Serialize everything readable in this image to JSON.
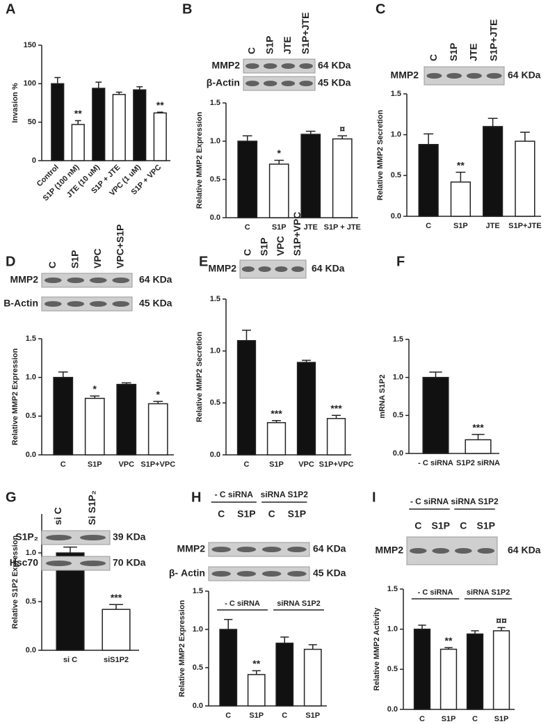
{
  "chart_data": [
    {
      "type": "bar",
      "panel": "A",
      "ylabel": "Invasion %",
      "categories": [
        "Control",
        "S1P (100 nM)",
        "JTE (10 uM)",
        "S1P + JTE",
        "VPC (1 uM)",
        "S1P + VPC"
      ],
      "values": [
        100,
        47,
        94,
        86,
        92,
        62
      ],
      "errors": [
        8,
        5,
        8,
        3,
        4,
        1
      ],
      "colors": [
        "#111111",
        "#ffffff",
        "#111111",
        "#ffffff",
        "#111111",
        "#ffffff"
      ],
      "annotations": [
        null,
        "**",
        null,
        null,
        null,
        "**"
      ],
      "ylim": [
        0,
        150
      ],
      "yticks": [
        0,
        50,
        100,
        150
      ]
    },
    {
      "type": "bar",
      "panel": "B",
      "ylabel": "Relative MMP2 Expression",
      "categories": [
        "C",
        "S1P",
        "JTE",
        "S1P + JTE"
      ],
      "values": [
        1.0,
        0.7,
        1.09,
        1.03
      ],
      "errors": [
        0.07,
        0.05,
        0.04,
        0.04
      ],
      "colors": [
        "#111111",
        "#ffffff",
        "#111111",
        "#ffffff"
      ],
      "annotations": [
        null,
        "*",
        null,
        "¤"
      ],
      "ylim": [
        0,
        1.5
      ],
      "yticks": [
        {
          "value": 0,
          "label": "0.0"
        },
        0.5,
        {
          "value": 1,
          "label": "1.0"
        },
        1.5
      ],
      "blot": {
        "lanes": [
          "C",
          "S1P",
          "JTE",
          "S1P+JTE"
        ],
        "rows": [
          {
            "label": "MMP2",
            "size": "64 KDa"
          },
          {
            "label": "β-Actin",
            "size": "45 KDa"
          }
        ]
      }
    },
    {
      "type": "bar",
      "panel": "C",
      "ylabel": "Relative MMP2 Secretion",
      "categories": [
        "C",
        "S1P",
        "JTE",
        "S1P+JTE"
      ],
      "values": [
        0.88,
        0.42,
        1.1,
        0.92
      ],
      "errors": [
        0.13,
        0.12,
        0.1,
        0.11
      ],
      "colors": [
        "#111111",
        "#ffffff",
        "#111111",
        "#ffffff"
      ],
      "annotations": [
        null,
        "**",
        null,
        null
      ],
      "ylim": [
        0,
        1.5
      ],
      "yticks": [
        {
          "value": 0,
          "label": "0.0"
        },
        0.5,
        {
          "value": 1,
          "label": "1.0"
        },
        1.5
      ],
      "blot": {
        "lanes": [
          "C",
          "S1P",
          "JTE",
          "S1P+JTE"
        ],
        "rows": [
          {
            "label": "MMP2",
            "size": "64 KDa"
          }
        ]
      }
    },
    {
      "type": "bar",
      "panel": "D",
      "ylabel": "Relative MMP2 Expression",
      "categories": [
        "C",
        "S1P",
        "VPC",
        "S1P+VPC"
      ],
      "values": [
        1.0,
        0.73,
        0.91,
        0.66
      ],
      "errors": [
        0.07,
        0.03,
        0.02,
        0.03
      ],
      "colors": [
        "#111111",
        "#ffffff",
        "#111111",
        "#ffffff"
      ],
      "annotations": [
        null,
        "*",
        null,
        "*"
      ],
      "ylim": [
        0,
        1.5
      ],
      "yticks": [
        {
          "value": 0,
          "label": "0.0"
        },
        0.5,
        {
          "value": 1,
          "label": "1.0"
        },
        1.5
      ],
      "blot": {
        "lanes": [
          "C",
          "S1P",
          "VPC",
          "VPC+S1P"
        ],
        "rows": [
          {
            "label": "MMP2",
            "size": "64 KDa"
          },
          {
            "label": "B-Actin",
            "size": "45 KDa"
          }
        ]
      }
    },
    {
      "type": "bar",
      "panel": "E",
      "ylabel": "Relative MMP2 Secretion",
      "categories": [
        "C",
        "S1P",
        "VPC",
        "S1P+VPC"
      ],
      "values": [
        1.1,
        0.31,
        0.89,
        0.35
      ],
      "errors": [
        0.1,
        0.02,
        0.02,
        0.03
      ],
      "colors": [
        "#111111",
        "#ffffff",
        "#111111",
        "#ffffff"
      ],
      "annotations": [
        null,
        "***",
        null,
        "***"
      ],
      "ylim": [
        0,
        1.5
      ],
      "yticks": [
        {
          "value": 0,
          "label": "0.0"
        },
        0.5,
        {
          "value": 1,
          "label": "1.0"
        },
        1.5
      ],
      "blot": {
        "lanes": [
          "C",
          "S1P",
          "VPC",
          "S1P+VPC"
        ],
        "rows": [
          {
            "label": "MMP2",
            "size": "64 KDa"
          }
        ]
      }
    },
    {
      "type": "bar",
      "panel": "F",
      "ylabel": "mRNA S1P2",
      "categories": [
        "- C siRNA",
        "S1P2 siRNA"
      ],
      "values": [
        1.0,
        0.18
      ],
      "errors": [
        0.07,
        0.07
      ],
      "colors": [
        "#111111",
        "#ffffff"
      ],
      "annotations": [
        null,
        "***"
      ],
      "ylim": [
        0,
        1.5
      ],
      "yticks": [
        {
          "value": 0,
          "label": "0.0"
        },
        0.5,
        {
          "value": 1,
          "label": "1.0"
        },
        1.5
      ]
    },
    {
      "type": "bar",
      "panel": "G",
      "ylabel": "Relative S1P2 Expression",
      "categories": [
        "si C",
        "siS1P2"
      ],
      "values": [
        1.0,
        0.42
      ],
      "errors": [
        0.06,
        0.05
      ],
      "colors": [
        "#111111",
        "#ffffff"
      ],
      "annotations": [
        null,
        "***"
      ],
      "ylim": [
        0,
        1.4
      ],
      "yticks": [
        {
          "value": 0,
          "label": "0.0"
        },
        0.5,
        {
          "value": 1,
          "label": "1.0"
        }
      ],
      "blot": {
        "lanes": [
          "si C",
          "Si S1P₂"
        ],
        "rows": [
          {
            "label": "S1P₂",
            "size": "39 KDa"
          },
          {
            "label": "Hsc70",
            "size": "70 KDa"
          }
        ]
      }
    },
    {
      "type": "bar",
      "panel": "H",
      "ylabel": "Relative MMP2 Expression",
      "categories": [
        "C",
        "S1P",
        "C",
        "S1P"
      ],
      "values": [
        1.0,
        0.41,
        0.82,
        0.74
      ],
      "errors": [
        0.13,
        0.05,
        0.08,
        0.06
      ],
      "colors": [
        "#111111",
        "#ffffff",
        "#111111",
        "#ffffff"
      ],
      "annotations": [
        null,
        "**",
        null,
        null
      ],
      "groups": [
        "- C siRNA",
        "siRNA S1P2"
      ],
      "ylim": [
        0,
        1.5
      ],
      "yticks": [
        {
          "value": 0,
          "label": "0.0"
        },
        0.5,
        {
          "value": 1,
          "label": "1.0"
        },
        1.5
      ],
      "blot": {
        "groups": [
          "- C siRNA",
          "siRNA S1P2"
        ],
        "lanes": [
          "C",
          "S1P",
          "C",
          "S1P"
        ],
        "rows": [
          {
            "label": "MMP2",
            "size": "64 KDa"
          },
          {
            "label": "β- Actin",
            "size": "45 KDa"
          }
        ]
      }
    },
    {
      "type": "bar",
      "panel": "I",
      "ylabel": "Relative MMP2 Activity",
      "categories": [
        "C",
        "S1P",
        "C",
        "S1P"
      ],
      "values": [
        1.0,
        0.75,
        0.94,
        0.98
      ],
      "errors": [
        0.05,
        0.02,
        0.04,
        0.04
      ],
      "colors": [
        "#111111",
        "#ffffff",
        "#111111",
        "#ffffff"
      ],
      "annotations": [
        null,
        "**",
        null,
        "¤¤"
      ],
      "groups": [
        "- C siRNA",
        "siRNA S1P2"
      ],
      "ylim": [
        0,
        1.5
      ],
      "yticks": [
        {
          "value": 0,
          "label": "0.0"
        },
        0.5,
        {
          "value": 1,
          "label": "1.0"
        },
        1.5
      ],
      "blot": {
        "groups": [
          "- C siRNA",
          "siRNA S1P2"
        ],
        "lanes": [
          "C",
          "S1P",
          "C",
          "S1P"
        ],
        "rows": [
          {
            "label": "MMP2",
            "size": "64 KDa"
          }
        ]
      }
    }
  ]
}
